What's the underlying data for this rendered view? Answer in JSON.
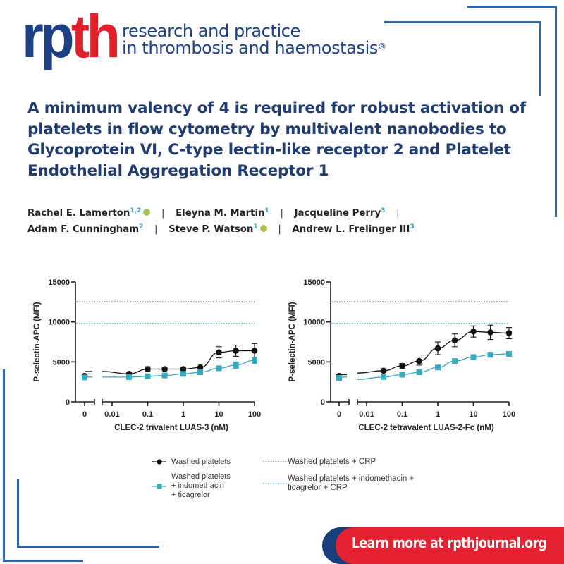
{
  "header": {
    "logo_rp": "rp",
    "logo_th": "th",
    "journal_line1": "research and practice",
    "journal_line2": "in thrombosis and haemostasis",
    "registered_mark": "®",
    "colors": {
      "navy": "#1c3f85",
      "red": "#e0202a",
      "deco_blue": "#2b66ad"
    }
  },
  "article": {
    "title_lines": [
      "A minimum valency of 4 is required for robust activation of",
      "platelets in flow cytometry by multivalent nanobodies to",
      "Glycoprotein VI, C-type lectin-like receptor 2 and Platelet",
      "Endothelial Aggregation Receptor 1"
    ],
    "authors": [
      {
        "name": "Rachel E. Lamerton",
        "aff": "1,2",
        "orcid": true
      },
      {
        "name": "Eleyna M. Martin",
        "aff": "1",
        "orcid": false
      },
      {
        "name": "Jacqueline Perry",
        "aff": "3",
        "orcid": false
      },
      {
        "name": "Adam F. Cunningham",
        "aff": "2",
        "orcid": false
      },
      {
        "name": "Steve P. Watson",
        "aff": "1",
        "orcid": true
      },
      {
        "name": "Andrew L. Frelinger III",
        "aff": "3",
        "orcid": false
      }
    ],
    "separator": "|"
  },
  "chart_data": [
    {
      "type": "line",
      "title": "",
      "xlabel": "CLEC-2 trivalent LUAS-3 (nM)",
      "ylabel": "P-selectin-APC (MFI)",
      "xscale": "log (with broken axis at 0)",
      "x_tick_labels": [
        "0",
        "0.01",
        "0.1",
        "1",
        "10",
        "100"
      ],
      "y_tick_labels": [
        "0",
        "5000",
        "10000",
        "15000"
      ],
      "ylim": [
        0,
        15000
      ],
      "x": [
        0,
        0.03,
        0.1,
        0.3,
        1,
        3,
        10,
        30,
        100
      ],
      "series": [
        {
          "name": "Washed platelets",
          "marker": "circle",
          "color": "#111111",
          "values": [
            3250,
            3500,
            4100,
            4100,
            4100,
            4300,
            6200,
            6400,
            6400
          ],
          "errors": [
            150,
            150,
            300,
            150,
            150,
            400,
            700,
            700,
            900
          ]
        },
        {
          "name": "Washed platelets + indomethacin + ticagrelor",
          "marker": "square",
          "color": "#35a9bd",
          "values": [
            3050,
            3100,
            3200,
            3300,
            3500,
            3700,
            4200,
            4600,
            5200
          ],
          "errors": [
            100,
            100,
            100,
            100,
            150,
            200,
            300,
            400,
            400
          ]
        }
      ],
      "reference_lines": [
        {
          "name": "Washed platelets + CRP",
          "y": 12500,
          "style": "dotted",
          "color": "#333333"
        },
        {
          "name": "Washed platelets + indomethacin + ticagrelor + CRP",
          "y": 9800,
          "style": "dotted",
          "color": "#35a9bd"
        }
      ]
    },
    {
      "type": "line",
      "title": "",
      "xlabel": "CLEC-2 tetravalent LUAS-2-Fc (nM)",
      "ylabel": "P-selectin-APC (MFI)",
      "xscale": "log (with broken axis at 0)",
      "x_tick_labels": [
        "0",
        "0.01",
        "0.1",
        "1",
        "10",
        "100"
      ],
      "y_tick_labels": [
        "0",
        "5000",
        "10000",
        "15000"
      ],
      "ylim": [
        0,
        15000
      ],
      "x": [
        0,
        0.03,
        0.1,
        0.3,
        1,
        3,
        10,
        30,
        100
      ],
      "series": [
        {
          "name": "Washed platelets",
          "marker": "circle",
          "color": "#111111",
          "values": [
            3250,
            3900,
            4500,
            5100,
            6700,
            7700,
            8800,
            8700,
            8600
          ],
          "errors": [
            150,
            200,
            300,
            500,
            800,
            800,
            700,
            900,
            700
          ]
        },
        {
          "name": "Washed platelets + indomethacin + ticagrelor",
          "marker": "square",
          "color": "#35a9bd",
          "values": [
            3000,
            3100,
            3400,
            3700,
            4300,
            5100,
            5600,
            5900,
            6000
          ],
          "errors": [
            100,
            100,
            100,
            150,
            200,
            200,
            150,
            150,
            300
          ]
        }
      ],
      "reference_lines": [
        {
          "name": "Washed platelets + CRP",
          "y": 12500,
          "style": "dotted",
          "color": "#333333"
        },
        {
          "name": "Washed platelets + indomethacin + ticagrelor + CRP",
          "y": 9800,
          "style": "dotted",
          "color": "#35a9bd"
        }
      ]
    }
  ],
  "legend": {
    "item1": "Washed platelets",
    "item2_line1": "Washed platelets",
    "item2_line2": "+ indomethacin",
    "item2_line3": "+ ticagrelor",
    "item3": "Washed platelets + CRP",
    "item4_line1": "Washed platelets + indomethacin  +",
    "item4_line2": "ticagrelor + CRP"
  },
  "footer": {
    "cta": "Learn more at rpthjournal.org",
    "colors": {
      "red": "#e42231",
      "navy": "#173d7a"
    }
  }
}
